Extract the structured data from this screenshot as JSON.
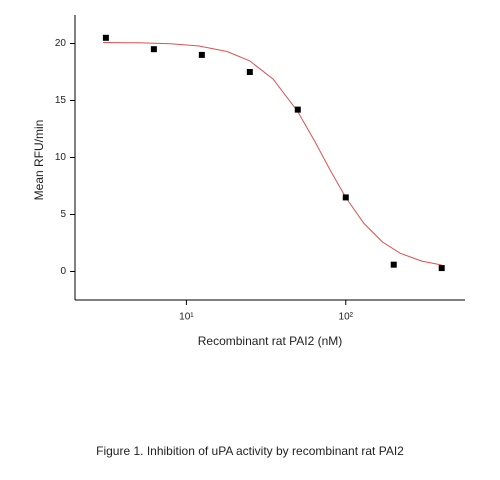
{
  "chart_data": {
    "type": "scatter",
    "x": [
      3.125,
      6.25,
      12.5,
      25,
      50,
      100,
      200,
      400
    ],
    "values": [
      20.5,
      19.5,
      19.0,
      17.5,
      14.2,
      6.5,
      0.6,
      0.3
    ],
    "color": "#000000",
    "fit": {
      "x": [
        3,
        5,
        8,
        12,
        18,
        25,
        35,
        50,
        65,
        80,
        100,
        130,
        170,
        220,
        300,
        400
      ],
      "values": [
        20.09,
        20.06,
        19.97,
        19.78,
        19.3,
        18.47,
        16.88,
        14.03,
        11.24,
        8.87,
        6.49,
        4.22,
        2.59,
        1.6,
        0.91,
        0.57
      ],
      "color": "#e05050"
    },
    "xlog": true,
    "xlim": [
      2,
      560
    ],
    "ylim": [
      -2.5,
      22.5
    ],
    "xticks": [
      {
        "value": 10,
        "label": "10¹"
      },
      {
        "value": 100,
        "label": "10²"
      }
    ],
    "yticks": [
      0,
      5,
      10,
      15,
      20
    ],
    "xlabel": "Recombinant rat PAI2 (nM)",
    "ylabel": "Mean RFU/min",
    "caption": "Figure 1. Inhibition of uPA activity by recombinant rat PAI2"
  }
}
